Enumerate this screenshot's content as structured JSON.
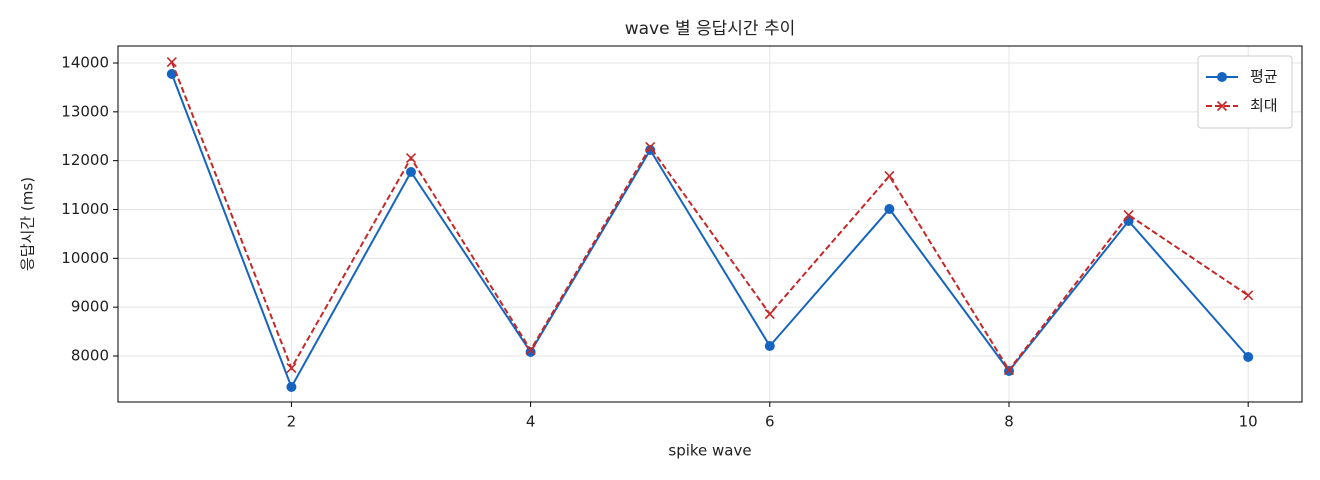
{
  "chart_data": {
    "type": "line",
    "title": "wave 별 응답시간 추이",
    "x_label": "spike wave",
    "y_label": "응답시간 (ms)",
    "x": [
      1,
      2,
      3,
      4,
      5,
      6,
      7,
      8,
      9,
      10
    ],
    "series": [
      {
        "name": "평균",
        "color": "#1565c0",
        "linestyle": "solid",
        "marker": "circle",
        "values": [
          13775,
          7365,
          11768,
          8082,
          12218,
          8205,
          11010,
          7693,
          10764,
          7980
        ]
      },
      {
        "name": "최대",
        "color": "#c62828",
        "linestyle": "dashed",
        "marker": "x",
        "values": [
          14020,
          7754,
          12054,
          8123,
          12280,
          8860,
          11686,
          7713,
          10887,
          9242
        ]
      }
    ],
    "xlim": [
      0.55,
      10.45
    ],
    "xticks": [
      2,
      4,
      6,
      8,
      10
    ],
    "ylim": [
      7058,
      14348
    ],
    "yticks": [
      8000,
      9000,
      10000,
      11000,
      12000,
      13000,
      14000
    ],
    "grid": true,
    "legend": "upper right"
  }
}
